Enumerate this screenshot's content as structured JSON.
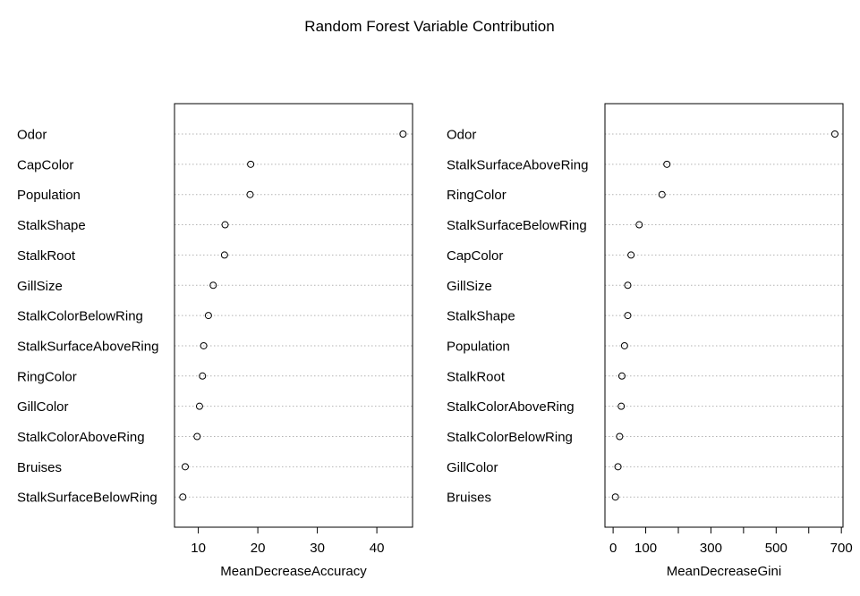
{
  "title": "Random Forest Variable Contribution",
  "chart_data": [
    {
      "type": "scatter",
      "xlabel": "MeanDecreaseAccuracy",
      "xticks": [
        10,
        20,
        30,
        40
      ],
      "xlim": [
        6,
        46
      ],
      "grid": "horizontal-dotted",
      "categories": [
        "Odor",
        "CapColor",
        "Population",
        "StalkShape",
        "StalkRoot",
        "GillSize",
        "StalkColorBelowRing",
        "StalkSurfaceAboveRing",
        "RingColor",
        "GillColor",
        "StalkColorAboveRing",
        "Bruises",
        "StalkSurfaceBelowRing"
      ],
      "values": [
        44.4,
        18.8,
        18.7,
        14.5,
        14.4,
        12.5,
        11.7,
        10.9,
        10.7,
        10.2,
        9.8,
        7.8,
        7.4
      ]
    },
    {
      "type": "scatter",
      "xlabel": "MeanDecreaseGini",
      "xticks": [
        0,
        100,
        300,
        500,
        700
      ],
      "xminorticks": [
        200,
        400,
        600
      ],
      "xlim": [
        -25,
        705
      ],
      "grid": "horizontal-dotted",
      "categories": [
        "Odor",
        "StalkSurfaceAboveRing",
        "RingColor",
        "StalkSurfaceBelowRing",
        "CapColor",
        "GillSize",
        "StalkShape",
        "Population",
        "StalkRoot",
        "StalkColorAboveRing",
        "StalkColorBelowRing",
        "GillColor",
        "Bruises"
      ],
      "values": [
        680,
        165,
        150,
        80,
        55,
        45,
        45,
        35,
        27,
        25,
        20,
        15,
        7
      ]
    }
  ]
}
